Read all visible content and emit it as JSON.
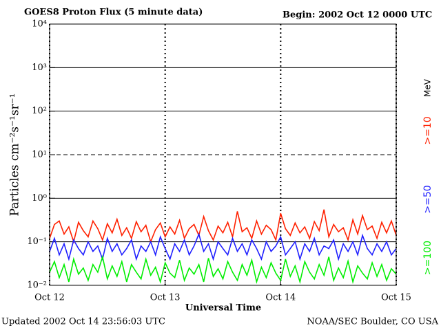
{
  "chart_data": {
    "type": "line",
    "title": "GOES8 Proton Flux (5 minute data)",
    "subtitle": "Begin: 2002 Oct 12 0000 UTC",
    "x_label": "Universal Time",
    "y_label": "Particles cm⁻²s⁻¹sr⁻¹",
    "unit_label": "MeV",
    "footer_left": "Updated 2002 Oct 14 23:56:03 UTC",
    "footer_right": "NOAA/SEC Boulder, CO USA",
    "log_y": true,
    "grid": true,
    "dashed_ylines": [
      10
    ],
    "xlim": [
      0,
      72
    ],
    "xticks": [
      {
        "value": 0,
        "label": "Oct 12"
      },
      {
        "value": 24,
        "label": "Oct 13"
      },
      {
        "value": 48,
        "label": "Oct 14"
      },
      {
        "value": 72,
        "label": "Oct 15"
      }
    ],
    "ylim": [
      0.01,
      10000
    ],
    "yticks": [
      {
        "value": 0.01,
        "label": "10⁻²"
      },
      {
        "value": 0.1,
        "label": "10⁻¹"
      },
      {
        "value": 1,
        "label": "10⁰"
      },
      {
        "value": 10,
        "label": "10¹"
      },
      {
        "value": 100,
        "label": "10²"
      },
      {
        "value": 1000,
        "label": "10³"
      },
      {
        "value": 10000,
        "label": "10⁴"
      }
    ],
    "x": [
      0,
      1,
      2,
      3,
      4,
      5,
      6,
      7,
      8,
      9,
      10,
      11,
      12,
      13,
      14,
      15,
      16,
      17,
      18,
      19,
      20,
      21,
      22,
      23,
      24,
      25,
      26,
      27,
      28,
      29,
      30,
      31,
      32,
      33,
      34,
      35,
      36,
      37,
      38,
      39,
      40,
      41,
      42,
      43,
      44,
      45,
      46,
      47,
      48,
      49,
      50,
      51,
      52,
      53,
      54,
      55,
      56,
      57,
      58,
      59,
      60,
      61,
      62,
      63,
      64,
      65,
      66,
      67,
      68,
      69,
      70,
      71,
      72
    ],
    "series": [
      {
        "name": ">=10",
        "color": "#ff2000",
        "values": [
          0.12,
          0.25,
          0.3,
          0.15,
          0.22,
          0.1,
          0.28,
          0.18,
          0.13,
          0.3,
          0.2,
          0.11,
          0.26,
          0.16,
          0.33,
          0.14,
          0.21,
          0.12,
          0.29,
          0.17,
          0.24,
          0.1,
          0.19,
          0.27,
          0.13,
          0.22,
          0.15,
          0.31,
          0.12,
          0.2,
          0.25,
          0.14,
          0.38,
          0.18,
          0.11,
          0.23,
          0.16,
          0.28,
          0.13,
          0.5,
          0.17,
          0.21,
          0.12,
          0.3,
          0.15,
          0.24,
          0.19,
          0.11,
          0.45,
          0.2,
          0.14,
          0.27,
          0.16,
          0.22,
          0.12,
          0.29,
          0.18,
          0.55,
          0.13,
          0.25,
          0.17,
          0.21,
          0.11,
          0.32,
          0.15,
          0.4,
          0.19,
          0.23,
          0.12,
          0.28,
          0.16,
          0.3,
          0.14
        ]
      },
      {
        "name": ">=50",
        "color": "#2020ff",
        "values": [
          0.06,
          0.12,
          0.05,
          0.09,
          0.04,
          0.11,
          0.07,
          0.05,
          0.1,
          0.06,
          0.08,
          0.04,
          0.12,
          0.06,
          0.09,
          0.05,
          0.07,
          0.11,
          0.04,
          0.08,
          0.06,
          0.1,
          0.05,
          0.13,
          0.07,
          0.04,
          0.09,
          0.06,
          0.11,
          0.05,
          0.08,
          0.15,
          0.06,
          0.09,
          0.04,
          0.1,
          0.07,
          0.05,
          0.12,
          0.06,
          0.09,
          0.05,
          0.11,
          0.07,
          0.04,
          0.1,
          0.06,
          0.08,
          0.13,
          0.05,
          0.07,
          0.1,
          0.04,
          0.09,
          0.06,
          0.12,
          0.05,
          0.08,
          0.07,
          0.11,
          0.04,
          0.09,
          0.06,
          0.1,
          0.05,
          0.14,
          0.07,
          0.05,
          0.09,
          0.06,
          0.1,
          0.05,
          0.07
        ]
      },
      {
        "name": ">=100",
        "color": "#00ee00",
        "values": [
          0.02,
          0.035,
          0.015,
          0.03,
          0.012,
          0.04,
          0.018,
          0.025,
          0.013,
          0.03,
          0.02,
          0.045,
          0.014,
          0.028,
          0.016,
          0.035,
          0.012,
          0.03,
          0.02,
          0.014,
          0.04,
          0.017,
          0.026,
          0.012,
          0.033,
          0.019,
          0.015,
          0.038,
          0.013,
          0.025,
          0.018,
          0.03,
          0.012,
          0.042,
          0.016,
          0.024,
          0.014,
          0.035,
          0.02,
          0.013,
          0.03,
          0.017,
          0.038,
          0.012,
          0.026,
          0.015,
          0.033,
          0.019,
          0.013,
          0.04,
          0.016,
          0.028,
          0.012,
          0.035,
          0.02,
          0.014,
          0.03,
          0.017,
          0.045,
          0.013,
          0.025,
          0.015,
          0.036,
          0.012,
          0.028,
          0.019,
          0.014,
          0.033,
          0.016,
          0.03,
          0.013,
          0.024,
          0.018
        ]
      }
    ]
  }
}
